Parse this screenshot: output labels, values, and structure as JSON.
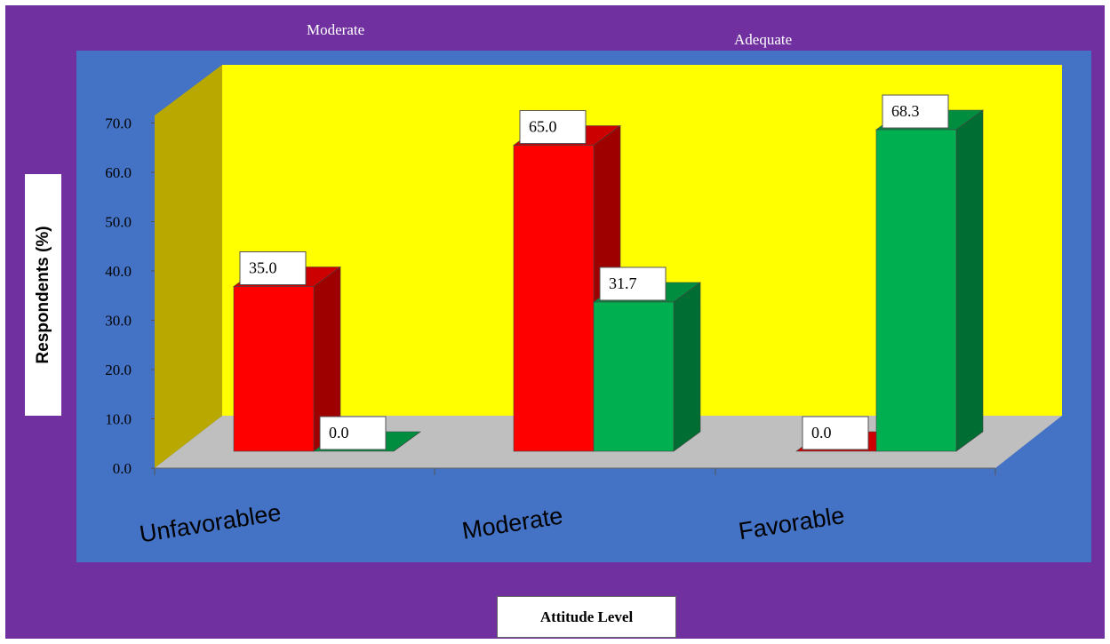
{
  "chart_data": {
    "type": "bar",
    "style": "3d-clustered",
    "categories": [
      "Unfavorablee",
      "Moderate",
      "Favorable"
    ],
    "series": [
      {
        "name": "Moderate",
        "color": "#ff0000",
        "values": [
          35.0,
          65.0,
          0.0
        ]
      },
      {
        "name": "Adequate",
        "color": "#00b050",
        "values": [
          0.0,
          31.7,
          68.3
        ]
      }
    ],
    "data_labels": [
      [
        "35.0",
        "65.0",
        "0.0"
      ],
      [
        "0.0",
        "31.7",
        "68.3"
      ]
    ],
    "y_ticks": [
      "0.0",
      "10.0",
      "20.0",
      "30.0",
      "40.0",
      "50.0",
      "60.0",
      "70.0"
    ],
    "ylim": [
      0,
      70
    ],
    "ylabel": "Respondents (%)",
    "xlabel": "Attitude Level",
    "legend_placement": "top",
    "colors": {
      "frame": "#7030a0",
      "plot_area": "#4472c4",
      "back_wall": "#ffff00",
      "side_wall": "#b8a800",
      "floor": "#bfbfbf"
    }
  }
}
